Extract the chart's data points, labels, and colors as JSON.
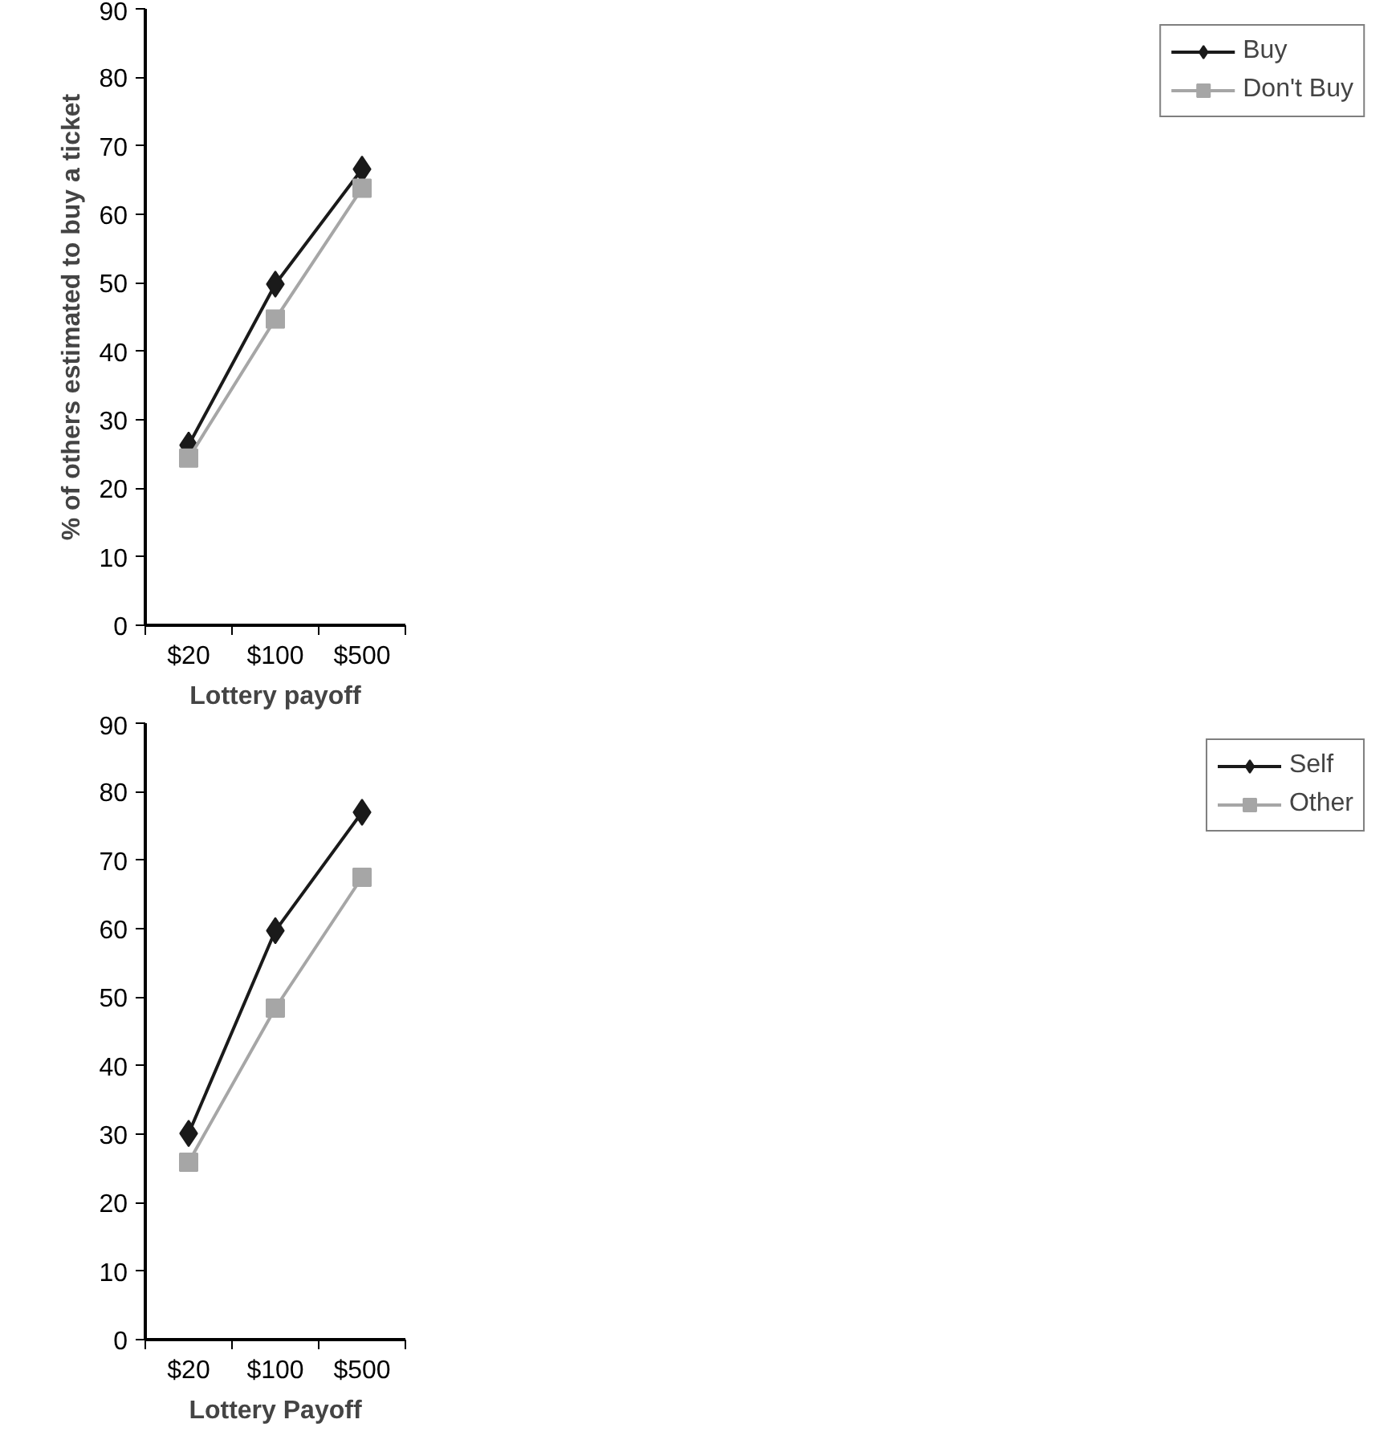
{
  "chart_data": [
    {
      "type": "line",
      "xlabel": "Lottery payoff",
      "ylabel": "% of others estimated to buy a ticket",
      "categories": [
        "$20",
        "$100",
        "$500"
      ],
      "ylim": [
        0,
        90
      ],
      "yticks": [
        0,
        10,
        20,
        30,
        40,
        50,
        60,
        70,
        80,
        90
      ],
      "legend": "right",
      "grid": false,
      "series": [
        {
          "name": "Buy",
          "color": "#1a1a1a",
          "marker": "diamond",
          "values": [
            26.3,
            49.8,
            66.6
          ]
        },
        {
          "name": "Don't Buy",
          "color": "#a6a6a6",
          "marker": "square",
          "values": [
            24.4,
            44.7,
            63.8
          ]
        }
      ]
    },
    {
      "type": "line",
      "xlabel": "Lottery Payoff",
      "categories": [
        "$20",
        "$100",
        "$500"
      ],
      "ylim": [
        0,
        90
      ],
      "yticks": [
        0,
        10,
        20,
        30,
        40,
        50,
        60,
        70,
        80,
        90
      ],
      "legend": "right",
      "grid": false,
      "series": [
        {
          "name": "Self",
          "color": "#1a1a1a",
          "marker": "diamond",
          "values": [
            30.1,
            59.7,
            77.0
          ]
        },
        {
          "name": "Other",
          "color": "#a6a6a6",
          "marker": "square",
          "values": [
            25.9,
            48.4,
            67.5
          ]
        }
      ]
    }
  ]
}
